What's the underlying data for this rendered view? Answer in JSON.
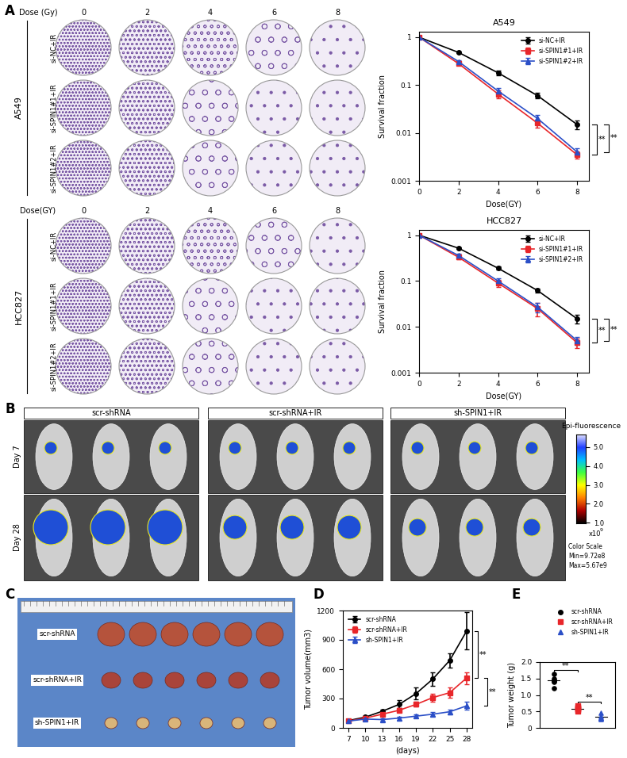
{
  "chart_data": [
    {
      "type": "line",
      "title": "A549",
      "xlabel": "Dose(GY)",
      "ylabel": "Survival fraction",
      "log": "y",
      "x": [
        0,
        2,
        4,
        6,
        8
      ],
      "xlim": [
        0,
        8.6
      ],
      "xticks": [
        0,
        2,
        4,
        6,
        8
      ],
      "ylim": [
        0.001,
        1.3
      ],
      "yticks": [
        0.001,
        0.01,
        0.1,
        1
      ],
      "legend": "upper right",
      "series": [
        {
          "name": "si-NC+IR",
          "color": "#000000",
          "marker": "circle",
          "line_style": "solid",
          "values": [
            1,
            0.48,
            0.18,
            0.06,
            0.015
          ],
          "errors": [
            0,
            0.02,
            0.02,
            0.008,
            0.003
          ]
        },
        {
          "name": "si-SPIN1#1+IR",
          "color": "#e8262a",
          "marker": "square",
          "line_style": "solid",
          "values": [
            1,
            0.28,
            0.065,
            0.016,
            0.0035
          ],
          "errors": [
            0,
            0.02,
            0.012,
            0.003,
            0.0006
          ]
        },
        {
          "name": "si-SPIN1#2+IR",
          "color": "#2b4fc7",
          "marker": "triangle",
          "line_style": "solid",
          "values": [
            1,
            0.31,
            0.075,
            0.02,
            0.004
          ],
          "errors": [
            0,
            0.02,
            0.012,
            0.004,
            0.0007
          ]
        }
      ],
      "significance": [
        {
          "text": "**",
          "series": [
            "si-NC+IR",
            "si-SPIN1#1+IR"
          ]
        },
        {
          "text": "**",
          "series": [
            "si-NC+IR",
            "si-SPIN1#2+IR"
          ]
        }
      ]
    },
    {
      "type": "line",
      "title": "HCC827",
      "xlabel": "Dose(GY)",
      "ylabel": "Survival fraction",
      "log": "y",
      "x": [
        0,
        2,
        4,
        6,
        8
      ],
      "xlim": [
        0,
        8.6
      ],
      "xticks": [
        0,
        2,
        4,
        6,
        8
      ],
      "ylim": [
        0.001,
        1.3
      ],
      "yticks": [
        0.001,
        0.01,
        0.1,
        1
      ],
      "legend": "upper right",
      "series": [
        {
          "name": "si-NC+IR",
          "color": "#000000",
          "marker": "circle",
          "line_style": "solid",
          "values": [
            1,
            0.52,
            0.19,
            0.062,
            0.015
          ],
          "errors": [
            0,
            0.02,
            0.015,
            0.006,
            0.003
          ]
        },
        {
          "name": "si-SPIN1#1+IR",
          "color": "#e8262a",
          "marker": "square",
          "line_style": "solid",
          "values": [
            1,
            0.33,
            0.09,
            0.025,
            0.0045
          ],
          "errors": [
            0,
            0.03,
            0.015,
            0.008,
            0.001
          ]
        },
        {
          "name": "si-SPIN1#2+IR",
          "color": "#2b4fc7",
          "marker": "triangle",
          "line_style": "solid",
          "values": [
            1,
            0.36,
            0.1,
            0.027,
            0.005
          ],
          "errors": [
            0,
            0.03,
            0.015,
            0.006,
            0.001
          ]
        }
      ],
      "significance": [
        {
          "text": "**",
          "series": [
            "si-NC+IR",
            "si-SPIN1#1+IR"
          ]
        },
        {
          "text": "**",
          "series": [
            "si-NC+IR",
            "si-SPIN1#2+IR"
          ]
        }
      ]
    },
    {
      "type": "line",
      "xlabel": "(days)",
      "ylabel": "Tumor volume(mm3)",
      "x": [
        7,
        10,
        13,
        16,
        19,
        22,
        25,
        28
      ],
      "xlim": [
        6,
        29
      ],
      "xticks": [
        7,
        10,
        13,
        16,
        19,
        22,
        25,
        28
      ],
      "ylim": [
        0,
        1200
      ],
      "yticks": [
        0,
        300,
        600,
        900,
        1200
      ],
      "legend": "upper left",
      "series": [
        {
          "name": "scr-shRNA",
          "color": "#000000",
          "marker": "circle",
          "line_style": "solid",
          "values": [
            75,
            110,
            170,
            240,
            350,
            500,
            690,
            990
          ],
          "errors": [
            10,
            15,
            20,
            40,
            60,
            70,
            70,
            190
          ]
        },
        {
          "name": "scr-shRNA+IR",
          "color": "#e8262a",
          "marker": "square",
          "line_style": "solid",
          "values": [
            70,
            100,
            140,
            180,
            240,
            310,
            360,
            510
          ],
          "errors": [
            10,
            12,
            15,
            20,
            25,
            40,
            50,
            60
          ]
        },
        {
          "name": "sh-SPIN1+IR",
          "color": "#2b4fc7",
          "marker": "triangle",
          "line_style": "solid",
          "values": [
            70,
            90,
            85,
            100,
            120,
            140,
            165,
            225
          ],
          "errors": [
            10,
            10,
            10,
            15,
            15,
            20,
            25,
            40
          ]
        }
      ],
      "significance": [
        {
          "text": "**",
          "series": [
            "scr-shRNA",
            "scr-shRNA+IR"
          ]
        },
        {
          "text": "**",
          "series": [
            "scr-shRNA+IR",
            "sh-SPIN1+IR"
          ]
        }
      ]
    },
    {
      "type": "dot",
      "ylabel": "Tumor weight (g)",
      "tick_labels": "y",
      "ylim": [
        0,
        2
      ],
      "yticks": [
        0,
        0.5,
        {
          "value": 1,
          "label": "1.0"
        },
        1.5,
        {
          "value": 2,
          "label": "2.0"
        }
      ],
      "legend": "upper right",
      "series": [
        {
          "name": "scr-shRNA",
          "color": "#000000",
          "marker": "circle",
          "values": [
            1.65,
            1.5,
            1.45,
            1.42,
            1.4,
            1.2
          ]
        },
        {
          "name": "scr-shRNA+IR",
          "color": "#e8262a",
          "marker": "square",
          "values": [
            0.68,
            0.62,
            0.6,
            0.57,
            0.55,
            0.5
          ]
        },
        {
          "name": "sh-SPIN1+IR",
          "color": "#2b4fc7",
          "marker": "triangle",
          "values": [
            0.45,
            0.35,
            0.32,
            0.3,
            0.28,
            0.27
          ]
        }
      ],
      "significance": [
        {
          "text": "**",
          "series": [
            "scr-shRNA",
            "scr-shRNA+IR"
          ]
        },
        {
          "text": "**",
          "series": [
            "scr-shRNA+IR",
            "sh-SPIN1+IR"
          ]
        }
      ]
    }
  ],
  "panel_labels": [
    "A",
    "B",
    "C",
    "D",
    "E"
  ],
  "colony_assays": [
    {
      "cell_line": "A549",
      "dose_label": "Dose (Gy)",
      "doses": [
        0,
        2,
        4,
        6,
        8
      ],
      "rows": [
        "si-NC+IR",
        "si-SPIN1#1+IR",
        "si-SPIN1#2+IR"
      ]
    },
    {
      "cell_line": "HCC827",
      "dose_label": "Dose(GY)",
      "doses": [
        0,
        2,
        4,
        6,
        8
      ],
      "rows": [
        "si-NC+IR",
        "si-SPIN1#1+IR",
        "si-SPIN1#2+IR"
      ]
    }
  ],
  "imaging": {
    "groups": [
      "scr-shRNA",
      "scr-shRNA+IR",
      "sh-SPIN1+IR"
    ],
    "days": [
      "Day 7",
      "Day 28"
    ],
    "colorbar": {
      "title": "Epi-fluorescence",
      "multiplier": "x10",
      "exponent": "9",
      "range": [
        0.972,
        5.67
      ],
      "ticks": [
        {
          "value": 1,
          "label": "1.0"
        },
        {
          "value": 2,
          "label": "2.0"
        },
        {
          "value": 3,
          "label": "3.0"
        },
        {
          "value": 4,
          "label": "4.0"
        },
        {
          "value": 5,
          "label": "5.0"
        }
      ],
      "notes": [
        "Color Scale",
        "Min=9.72e8",
        "Max=5.67e9"
      ]
    }
  },
  "tumor_photo": {
    "rows": [
      "scr-shRNA",
      "scr-shRNA+IR",
      "sh-SPIN1+IR"
    ]
  }
}
